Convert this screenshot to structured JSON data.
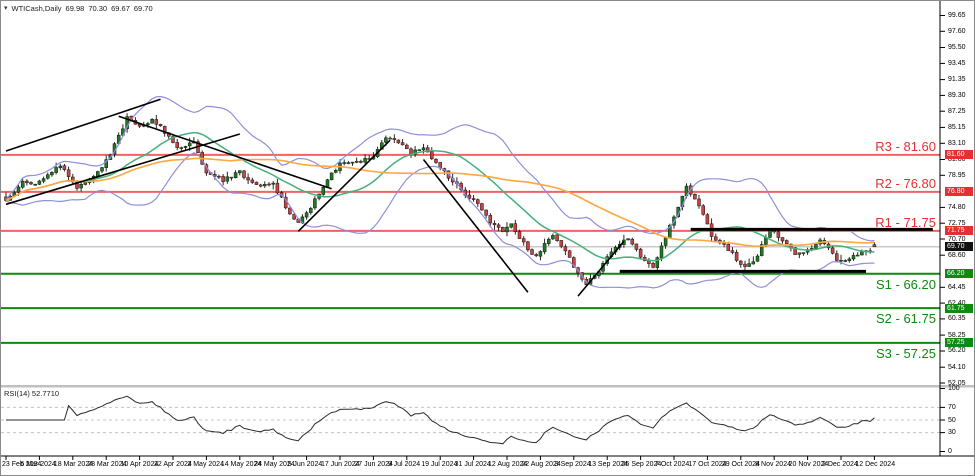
{
  "title": {
    "symbol_timeframe": "WTICash,Daily",
    "open": "69.98",
    "high": "70.30",
    "low": "69.67",
    "close": "69.70"
  },
  "rsi": {
    "label": "RSI(14) 52.7710",
    "period": 14,
    "value": 52.771,
    "dashed_levels": [
      70,
      50,
      30
    ],
    "scale_ticks": [
      {
        "text": "100",
        "value": 100
      },
      {
        "text": "70",
        "value": 70
      },
      {
        "text": "50",
        "value": 50
      },
      {
        "text": "30",
        "value": 30
      },
      {
        "text": "0",
        "value": 0
      }
    ]
  },
  "colors": {
    "bull": "#1f7a24",
    "bear": "#c94343",
    "wick": "#111111",
    "bollinger": "#8f8fd8",
    "ma_fast": "#45b07a",
    "ma_slow": "#ffa63f",
    "resistance_line": "#f16363",
    "resistance_text": "#e53030",
    "support_line": "#0e8a0e",
    "support_text": "#0e8a0e",
    "price_marker_bg": "#111111",
    "trend": "#000000",
    "current_price_line": "#c8c8c8",
    "rsi_line": "#2b2b2b",
    "separator": "#c0c0c0",
    "axis_line": "#000000"
  },
  "price_axis": {
    "ticks": [
      {
        "text": "99.65",
        "value": 99.65
      },
      {
        "text": "97.60",
        "value": 97.6
      },
      {
        "text": "95.50",
        "value": 95.5
      },
      {
        "text": "93.45",
        "value": 93.45
      },
      {
        "text": "91.35",
        "value": 91.35
      },
      {
        "text": "89.30",
        "value": 89.3
      },
      {
        "text": "87.25",
        "value": 87.25
      },
      {
        "text": "85.15",
        "value": 85.15
      },
      {
        "text": "83.10",
        "value": 83.1
      },
      {
        "text": "81.00",
        "value": 81.0
      },
      {
        "text": "78.95",
        "value": 78.95
      },
      {
        "text": "74.80",
        "value": 74.8
      },
      {
        "text": "72.75",
        "value": 72.75
      },
      {
        "text": "70.70",
        "value": 70.7
      },
      {
        "text": "68.60",
        "value": 68.6
      },
      {
        "text": "64.45",
        "value": 64.45
      },
      {
        "text": "62.40",
        "value": 62.4
      },
      {
        "text": "60.35",
        "value": 60.35
      },
      {
        "text": "58.25",
        "value": 58.25
      },
      {
        "text": "56.20",
        "value": 56.2
      },
      {
        "text": "54.10",
        "value": 54.1
      },
      {
        "text": "52.05",
        "value": 52.05
      }
    ],
    "boxed_labels": [
      {
        "text": "81.60",
        "price": 81.6,
        "kind": "resistance"
      },
      {
        "text": "76.80",
        "price": 76.8,
        "kind": "resistance"
      },
      {
        "text": "71.75",
        "price": 71.75,
        "kind": "resistance"
      },
      {
        "text": "69.70",
        "price": 69.7,
        "kind": "current-price"
      },
      {
        "text": "66.20",
        "price": 66.2,
        "kind": "support"
      },
      {
        "text": "61.75",
        "price": 61.75,
        "kind": "support"
      },
      {
        "text": "57.25",
        "price": 57.25,
        "kind": "support"
      }
    ]
  },
  "chart_data": {
    "type": "candlestick",
    "title": "WTICash,Daily",
    "last_ohlc": {
      "open": 69.98,
      "high": 70.3,
      "low": 69.67,
      "close": 69.7
    },
    "y_range": [
      52.05,
      99.65
    ],
    "candles_count": 209,
    "current_price": 69.7,
    "levels": [
      {
        "id": "R3",
        "label": "R3 - 81.60",
        "price": 81.6,
        "kind": "resistance"
      },
      {
        "id": "R2",
        "label": "R2 - 76.80",
        "price": 76.8,
        "kind": "resistance"
      },
      {
        "id": "R1",
        "label": "R1 - 71.75",
        "price": 71.75,
        "kind": "resistance"
      },
      {
        "id": "S1",
        "label": "S1 - 66.20",
        "price": 66.2,
        "kind": "support"
      },
      {
        "id": "S2",
        "label": "S2 - 61.75",
        "price": 61.75,
        "kind": "support"
      },
      {
        "id": "S3",
        "label": "S3 - 57.25",
        "price": 57.25,
        "kind": "support"
      }
    ],
    "overlays": [
      {
        "name": "bollinger-bands",
        "color_key": "bollinger"
      },
      {
        "name": "moving-average-fast",
        "color_key": "ma_fast"
      },
      {
        "name": "moving-average-slow",
        "color_key": "ma_slow"
      }
    ],
    "price_path_anchors": [
      [
        0,
        75.8
      ],
      [
        4,
        78.0
      ],
      [
        8,
        78.0
      ],
      [
        13,
        80.2
      ],
      [
        17,
        77.3
      ],
      [
        21,
        78.6
      ],
      [
        25,
        81.6
      ],
      [
        29,
        86.3
      ],
      [
        32,
        85.2
      ],
      [
        35,
        86.2
      ],
      [
        38,
        84.5
      ],
      [
        41,
        82.6
      ],
      [
        45,
        83.3
      ],
      [
        48,
        79.1
      ],
      [
        52,
        78.4
      ],
      [
        56,
        79.3
      ],
      [
        60,
        77.6
      ],
      [
        64,
        77.9
      ],
      [
        68,
        73.9
      ],
      [
        70,
        72.8
      ],
      [
        73,
        74.8
      ],
      [
        77,
        78.4
      ],
      [
        80,
        80.3
      ],
      [
        84,
        80.6
      ],
      [
        88,
        81.3
      ],
      [
        91,
        83.8
      ],
      [
        94,
        83.2
      ],
      [
        97,
        81.9
      ],
      [
        100,
        82.7
      ],
      [
        104,
        80.0
      ],
      [
        107,
        78.2
      ],
      [
        110,
        76.5
      ],
      [
        113,
        75.2
      ],
      [
        116,
        73.0
      ],
      [
        119,
        71.6
      ],
      [
        121,
        72.6
      ],
      [
        124,
        70.1
      ],
      [
        127,
        68.3
      ],
      [
        129,
        70.0
      ],
      [
        131,
        71.3
      ],
      [
        134,
        69.2
      ],
      [
        137,
        66.3
      ],
      [
        139,
        64.9
      ],
      [
        141,
        66.0
      ],
      [
        144,
        68.2
      ],
      [
        147,
        70.2
      ],
      [
        149,
        70.8
      ],
      [
        151,
        69.4
      ],
      [
        153,
        67.6
      ],
      [
        155,
        66.9
      ],
      [
        157,
        69.7
      ],
      [
        159,
        72.2
      ],
      [
        161,
        75.1
      ],
      [
        163,
        77.3
      ],
      [
        165,
        75.8
      ],
      [
        167,
        73.9
      ],
      [
        169,
        71.2
      ],
      [
        171,
        70.1
      ],
      [
        173,
        69.4
      ],
      [
        175,
        68.0
      ],
      [
        177,
        66.9
      ],
      [
        179,
        67.6
      ],
      [
        181,
        69.8
      ],
      [
        183,
        71.8
      ],
      [
        185,
        71.1
      ],
      [
        187,
        69.9
      ],
      [
        189,
        68.7
      ],
      [
        191,
        68.9
      ],
      [
        193,
        69.6
      ],
      [
        195,
        70.4
      ],
      [
        197,
        69.3
      ],
      [
        199,
        68.2
      ],
      [
        201,
        67.8
      ],
      [
        203,
        68.5
      ],
      [
        205,
        68.9
      ],
      [
        207,
        69.2
      ],
      [
        208,
        69.7
      ]
    ],
    "trend_lines": [
      {
        "name": "ascending-channel-upper",
        "i1": 0,
        "p1": 82.1,
        "i2": 37,
        "p2": 88.8
      },
      {
        "name": "ascending-channel-lower",
        "i1": 0,
        "p1": 75.2,
        "i2": 56,
        "p2": 84.3
      },
      {
        "name": "descending-trendline-spring",
        "i1": 27,
        "p1": 86.6,
        "i2": 78,
        "p2": 77.2
      },
      {
        "name": "ascending-trendline-june-july",
        "i1": 70,
        "p1": 71.7,
        "i2": 92,
        "p2": 83.5
      },
      {
        "name": "descending-trendline-august",
        "i1": 100,
        "p1": 81.0,
        "i2": 125,
        "p2": 63.8
      },
      {
        "name": "ascending-trendline-september",
        "i1": 137,
        "p1": 63.3,
        "i2": 148,
        "p2": 70.4
      }
    ],
    "zone_lines": [
      {
        "name": "resistance-zone-line",
        "i1": 164,
        "i2": 222,
        "price": 71.95
      },
      {
        "name": "support-zone-line",
        "i1": 147,
        "i2": 206,
        "price": 66.5
      }
    ],
    "x_labels": [
      "23 Feb 2024",
      "6 Mar 2024",
      "18 Mar 2024",
      "28 Mar 2024",
      "10 Apr 2024",
      "22 Apr 2024",
      "2 May 2024",
      "14 May 2024",
      "24 May 2024",
      "5 Jun 2024",
      "17 Jun 2024",
      "27 Jun 2024",
      "9 Jul 2024",
      "19 Jul 2024",
      "31 Jul 2024",
      "12 Aug 2024",
      "22 Aug 2024",
      "3 Sep 2024",
      "13 Sep 2024",
      "25 Sep 2024",
      "7 Oct 2024",
      "17 Oct 2024",
      "29 Oct 2024",
      "8 Nov 2024",
      "20 Nov 2024",
      "2 Dec 2024",
      "12 Dec 2024"
    ]
  }
}
